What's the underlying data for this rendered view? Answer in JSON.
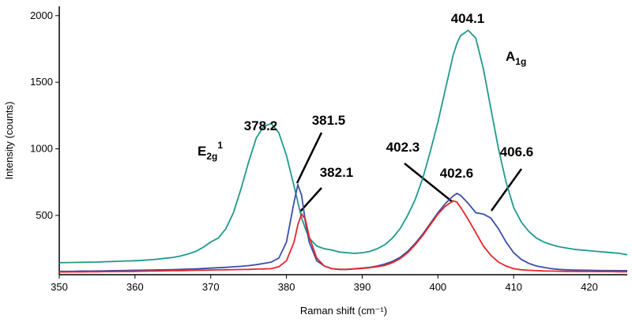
{
  "chart_data": {
    "type": "line",
    "x_label": "Raman shift (cm⁻¹)",
    "y_label": "Intensity (counts)",
    "xlim": [
      350,
      425
    ],
    "ylim": [
      55,
      2070
    ],
    "xticks": [
      350,
      360,
      370,
      380,
      390,
      400,
      410,
      420
    ],
    "yticks": [
      500,
      1000,
      1500,
      2000
    ],
    "x": [
      350,
      351,
      352,
      353,
      354,
      355,
      356,
      357,
      358,
      359,
      360,
      361,
      362,
      363,
      364,
      365,
      366,
      367,
      368,
      369,
      370,
      371,
      372,
      373,
      374,
      375,
      376,
      377,
      378,
      379,
      380,
      381,
      381.5,
      382,
      382.5,
      383,
      384,
      385,
      386,
      387,
      388,
      389,
      390,
      391,
      392,
      393,
      394,
      395,
      396,
      397,
      398,
      399,
      400,
      401,
      402,
      402.5,
      403,
      404,
      405,
      406,
      407,
      408,
      409,
      410,
      411,
      412,
      413,
      414,
      415,
      416,
      417,
      418,
      419,
      420,
      421,
      422,
      423,
      424,
      425
    ],
    "series": [
      {
        "color": "#1f9a8c",
        "values": [
          145,
          146,
          147,
          148,
          149,
          150,
          152,
          154,
          156,
          158,
          160,
          163,
          167,
          172,
          178,
          185,
          195,
          210,
          230,
          260,
          300,
          330,
          400,
          520,
          700,
          900,
          1080,
          1170,
          1190,
          1120,
          950,
          720,
          600,
          480,
          400,
          330,
          270,
          250,
          240,
          225,
          220,
          215,
          220,
          230,
          250,
          280,
          330,
          400,
          500,
          620,
          780,
          980,
          1200,
          1450,
          1700,
          1790,
          1850,
          1890,
          1830,
          1600,
          1300,
          1000,
          750,
          560,
          450,
          380,
          330,
          300,
          280,
          265,
          255,
          245,
          240,
          235,
          230,
          225,
          220,
          215,
          205
        ]
      },
      {
        "color": "#3c4ea6",
        "values": [
          80,
          80,
          81,
          82,
          82,
          83,
          84,
          85,
          86,
          87,
          88,
          89,
          90,
          91,
          92,
          93,
          95,
          97,
          99,
          101,
          104,
          107,
          110,
          114,
          118,
          123,
          130,
          140,
          150,
          180,
          300,
          600,
          730,
          650,
          450,
          300,
          160,
          120,
          100,
          95,
          95,
          100,
          105,
          110,
          120,
          135,
          155,
          185,
          230,
          290,
          360,
          440,
          520,
          590,
          645,
          665,
          650,
          590,
          520,
          510,
          480,
          400,
          300,
          220,
          170,
          140,
          120,
          110,
          100,
          95,
          92,
          90,
          89,
          88,
          87,
          86,
          86,
          85,
          85
        ]
      },
      {
        "color": "#e8262a",
        "values": [
          75,
          75,
          76,
          76,
          77,
          77,
          78,
          78,
          79,
          79,
          80,
          81,
          82,
          83,
          84,
          85,
          86,
          87,
          88,
          89,
          90,
          91,
          92,
          93,
          94,
          95,
          97,
          98,
          100,
          115,
          160,
          300,
          430,
          510,
          470,
          340,
          180,
          120,
          100,
          95,
          95,
          98,
          102,
          108,
          115,
          125,
          145,
          175,
          220,
          280,
          350,
          430,
          510,
          570,
          610,
          600,
          560,
          470,
          370,
          270,
          200,
          150,
          120,
          100,
          92,
          88,
          85,
          83,
          82,
          81,
          80,
          80,
          79,
          79,
          78,
          78,
          78,
          77,
          77
        ]
      }
    ],
    "annotations": [
      "378.2",
      "381.5",
      "382.1",
      "402.3",
      "402.6",
      "404.1",
      "406.6"
    ],
    "mode_labels": [
      {
        "base": "E",
        "sub": "2g",
        "sup": "1"
      },
      {
        "base": "A",
        "sub": "1g"
      }
    ]
  }
}
